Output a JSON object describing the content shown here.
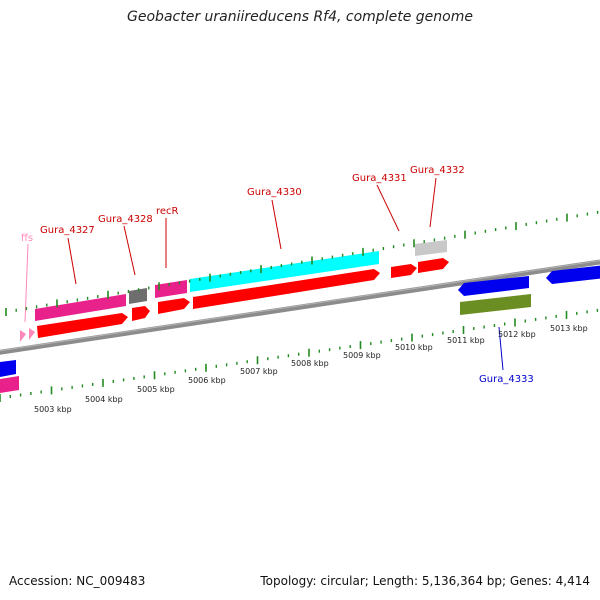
{
  "title": "Geobacter uraniireducens Rf4, complete genome",
  "footer": {
    "accession": "Accession: NC_009483",
    "summary": "Topology: circular; Length: 5,136,364 bp; Genes: 4,414"
  },
  "colors": {
    "axis": "#8c8c8c",
    "tick": "#228b22",
    "red": "#ff0000",
    "magenta": "#e8218b",
    "cyan": "#00ffff",
    "gray": "#6e6e6e",
    "lightgray": "#c8c8c8",
    "blue": "#0000ee",
    "olive": "#6b8e23",
    "pink": "#ff88bb",
    "label_red": "#cc0000",
    "label_blue": "#0000cc",
    "label_pink": "#ff88bb"
  },
  "axis_labels": [
    "5003 kbp",
    "5004 kbp",
    "5005 kbp",
    "5006 kbp",
    "5007 kbp",
    "5008 kbp",
    "5009 kbp",
    "5010 kbp",
    "5011 kbp",
    "5012 kbp",
    "5013 kbp"
  ],
  "gene_labels": [
    {
      "name": "ffs",
      "color": "pink"
    },
    {
      "name": "Gura_4327",
      "color": "label_red"
    },
    {
      "name": "Gura_4328",
      "color": "label_red"
    },
    {
      "name": "recR",
      "color": "label_red"
    },
    {
      "name": "Gura_4330",
      "color": "label_red"
    },
    {
      "name": "Gura_4331",
      "color": "label_red"
    },
    {
      "name": "Gura_4332",
      "color": "label_red"
    },
    {
      "name": "Gura_4333",
      "color": "label_blue"
    }
  ]
}
